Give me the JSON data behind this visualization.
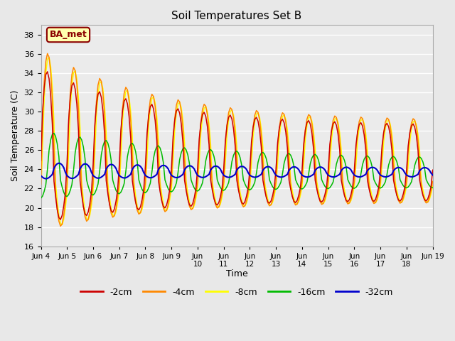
{
  "title": "Soil Temperatures Set B",
  "xlabel": "Time",
  "ylabel": "Soil Temperature (C)",
  "ylim": [
    16,
    39
  ],
  "yticks": [
    16,
    18,
    20,
    22,
    24,
    26,
    28,
    30,
    32,
    34,
    36,
    38
  ],
  "annotation": "BA_met",
  "fig_bg": "#e8e8e8",
  "plot_bg": "#ebebeb",
  "grid_color": "#ffffff",
  "colors": {
    "2cm": "#cc0000",
    "4cm": "#ff8800",
    "8cm": "#ffff00",
    "16cm": "#00bb00",
    "32cm": "#0000cc"
  },
  "x_tick_positions": [
    0,
    8,
    16,
    24,
    32,
    40,
    48,
    56,
    64,
    72,
    80,
    88,
    96,
    104,
    112,
    120
  ],
  "x_tick_labels": [
    "Jun 4",
    "Jun 5",
    "Jun 6",
    "Jun 7",
    "Jun 8",
    "Jun 9",
    "Jun\n10",
    "Jun\n11",
    "Jun\n12",
    "Jun\n13",
    "Jun\n14",
    "Jun\n15",
    "Jun\n16",
    "Jun\n17",
    "Jun\n18",
    "Jun 19"
  ],
  "base_temp": 23.0,
  "period": 8.0,
  "n_points": 241,
  "x_max": 120
}
